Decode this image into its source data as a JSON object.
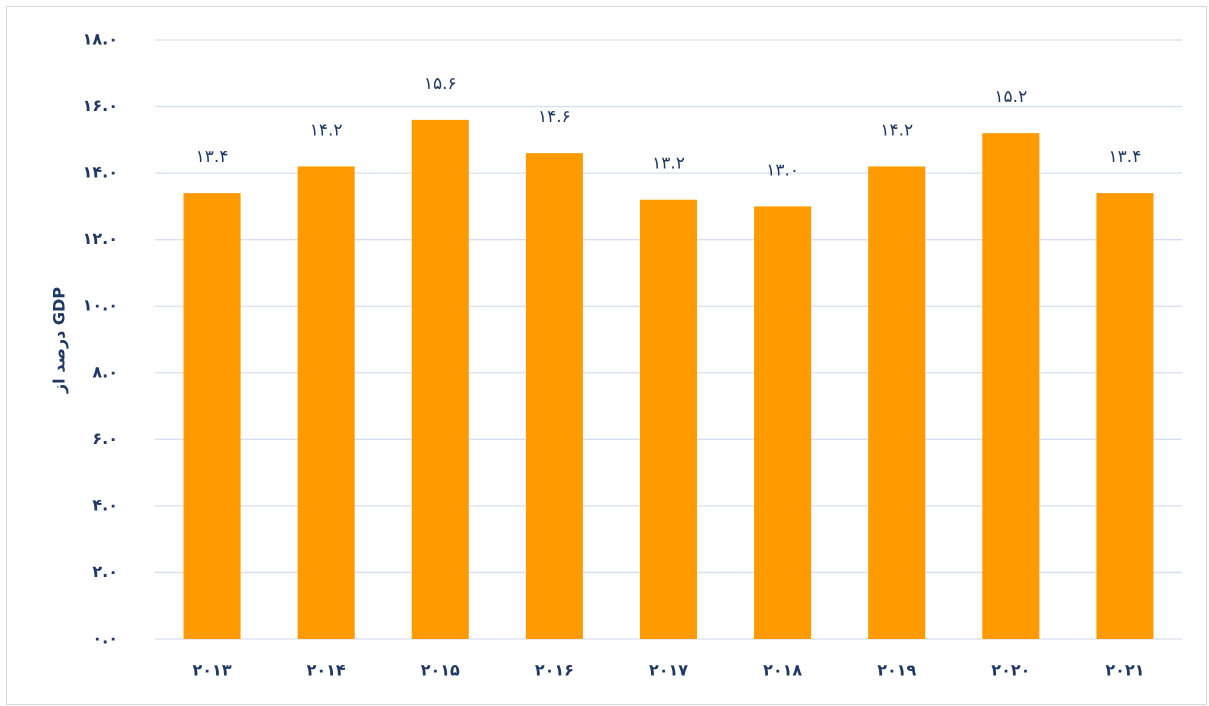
{
  "chart_data": {
    "type": "bar",
    "y_axis_label": "درصد از GDP",
    "categories": [
      "۲۰۱۳",
      "۲۰۱۴",
      "۲۰۱۵",
      "۲۰۱۶",
      "۲۰۱۷",
      "۲۰۱۸",
      "۲۰۱۹",
      "۲۰۲۰",
      "۲۰۲۱"
    ],
    "values": [
      13.4,
      14.2,
      15.6,
      14.6,
      13.2,
      13.0,
      14.2,
      15.2,
      13.4
    ],
    "value_labels": [
      "۱۳.۴",
      "۱۴.۲",
      "۱۵.۶",
      "۱۴.۶",
      "۱۳.۲",
      "۱۳.۰",
      "۱۴.۲",
      "۱۵.۲",
      "۱۳.۴"
    ],
    "color": "#ff9a00",
    "ylim": [
      0,
      18
    ],
    "yticks": [
      {
        "value": 0,
        "label": "۰.۰"
      },
      {
        "value": 2,
        "label": "۲.۰"
      },
      {
        "value": 4,
        "label": "۴.۰"
      },
      {
        "value": 6,
        "label": "۶.۰"
      },
      {
        "value": 8,
        "label": "۸.۰"
      },
      {
        "value": 10,
        "label": "۱۰.۰"
      },
      {
        "value": 12,
        "label": "۱۲.۰"
      },
      {
        "value": 14,
        "label": "۱۴.۰"
      },
      {
        "value": 16,
        "label": "۱۶.۰"
      },
      {
        "value": 18,
        "label": "۱۸.۰"
      }
    ],
    "grid": true
  }
}
